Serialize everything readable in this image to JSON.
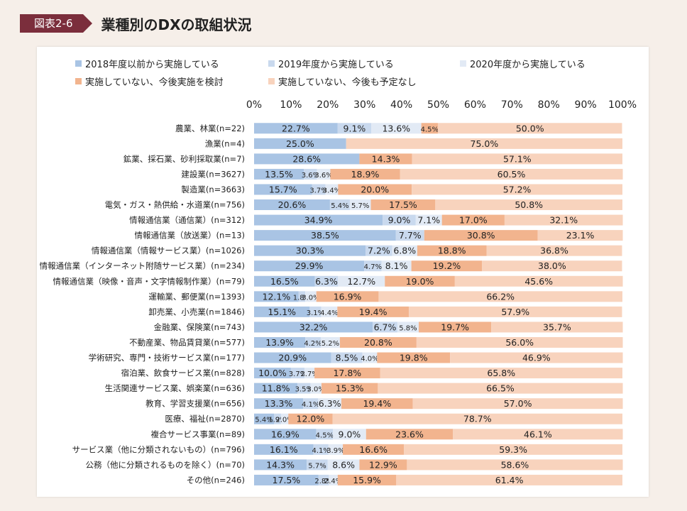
{
  "header": {
    "badge": "図表2-6",
    "title": "業種別のDXの取組状況"
  },
  "chart_data": {
    "type": "bar",
    "orientation": "horizontal",
    "stacked": true,
    "percent": true,
    "xlim": [
      0,
      100
    ],
    "xticks": [
      "0%",
      "10%",
      "20%",
      "30%",
      "40%",
      "50%",
      "60%",
      "70%",
      "80%",
      "90%",
      "100%"
    ],
    "legend_position": "top",
    "categories": [
      "農業、林業(n=22)",
      "漁業(n=4)",
      "鉱業、採石業、砂利採取業(n=7)",
      "建設業(n=3627)",
      "製造業(n=3663)",
      "電気・ガス・熱供給・水道業(n=756)",
      "情報通信業（通信業）(n=312)",
      "情報通信業（放送業）(n=13)",
      "情報通信業（情報サービス業）(n=1026)",
      "情報通信業（インターネット附随サービス業）(n=234)",
      "情報通信業（映像・音声・文字情報制作業）(n=79)",
      "運輸業、郵便業(n=1393)",
      "卸売業、小売業(n=1846)",
      "金融業、保険業(n=743)",
      "不動産業、物品賃貸業(n=577)",
      "学術研究、専門・技術サービス業(n=177)",
      "宿泊業、飲食サービス業(n=828)",
      "生活関連サービス業、娯楽業(n=636)",
      "教育、学習支援業(n=656)",
      "医療、福祉(n=2870)",
      "複合サービス事業(n=89)",
      "サービス業（他に分類されないもの）(n=796)",
      "公務（他に分類されるものを除く）(n=70)",
      "その他(n=246)"
    ],
    "series": [
      {
        "name": "2018年度以前から実施している",
        "color": "#a9c4e4",
        "values": [
          22.7,
          25.0,
          28.6,
          13.5,
          15.7,
          20.6,
          34.9,
          38.5,
          30.3,
          29.9,
          16.5,
          12.1,
          15.1,
          32.2,
          13.9,
          20.9,
          10.0,
          11.8,
          13.3,
          5.4,
          16.9,
          16.1,
          14.3,
          17.5
        ]
      },
      {
        "name": "2019年度から実施している",
        "color": "#c9d9ee",
        "values": [
          9.1,
          0,
          0,
          3.6,
          3.7,
          5.4,
          9.0,
          7.7,
          7.2,
          4.7,
          6.3,
          1.8,
          3.1,
          6.7,
          4.2,
          8.5,
          3.7,
          3.5,
          4.1,
          1.9,
          4.5,
          4.1,
          5.7,
          2.8
        ]
      },
      {
        "name": "2020年度から実施している",
        "color": "#e2eaf5",
        "values": [
          13.6,
          0,
          0,
          3.6,
          3.4,
          5.7,
          7.1,
          0,
          6.8,
          8.1,
          12.7,
          3.0,
          4.4,
          5.8,
          5.2,
          4.0,
          2.7,
          3.0,
          6.3,
          2.0,
          9.0,
          3.9,
          8.6,
          2.4
        ]
      },
      {
        "name": "実施していない、今後実施を検討",
        "color": "#f2b48e",
        "values": [
          4.5,
          0,
          14.3,
          18.9,
          20.0,
          17.5,
          17.0,
          30.8,
          18.8,
          19.2,
          19.0,
          16.9,
          19.4,
          19.7,
          20.8,
          19.8,
          17.8,
          15.3,
          19.4,
          12.0,
          23.6,
          16.6,
          12.9,
          15.9
        ]
      },
      {
        "name": "実施していない、今後も予定なし",
        "color": "#f8d3bd",
        "values": [
          50.0,
          75.0,
          57.1,
          60.5,
          57.2,
          50.8,
          32.1,
          23.1,
          36.8,
          38.0,
          45.6,
          66.2,
          57.9,
          35.7,
          56.0,
          46.9,
          65.8,
          66.5,
          57.0,
          78.7,
          46.1,
          59.3,
          58.6,
          61.4
        ]
      }
    ],
    "labels": [
      [
        "22.7%",
        "9.1%",
        "13.6%",
        "4.5%",
        "50.0%"
      ],
      [
        "25.0%",
        "",
        "",
        "",
        "75.0%"
      ],
      [
        "28.6%",
        "",
        "",
        "14.3%",
        "57.1%"
      ],
      [
        "13.5%",
        "3.6%",
        "3.6%",
        "18.9%",
        "60.5%"
      ],
      [
        "15.7%",
        "3.7%",
        "3.4%",
        "20.0%",
        "57.2%"
      ],
      [
        "20.6%",
        "5.4%",
        "5.7%",
        "17.5%",
        "50.8%"
      ],
      [
        "34.9%",
        "9.0%",
        "7.1%",
        "17.0%",
        "32.1%"
      ],
      [
        "38.5%",
        "7.7%",
        "",
        "30.8%",
        "23.1%"
      ],
      [
        "30.3%",
        "7.2%",
        "6.8%",
        "18.8%",
        "36.8%"
      ],
      [
        "29.9%",
        "4.7%",
        "8.1%",
        "19.2%",
        "38.0%"
      ],
      [
        "16.5%",
        "6.3%",
        "12.7%",
        "19.0%",
        "45.6%"
      ],
      [
        "12.1%",
        "1.8%",
        "3.0%",
        "16.9%",
        "66.2%"
      ],
      [
        "15.1%",
        "3.1%",
        "4.4%",
        "19.4%",
        "57.9%"
      ],
      [
        "32.2%",
        "6.7%",
        "5.8%",
        "19.7%",
        "35.7%"
      ],
      [
        "13.9%",
        "4.2%",
        "5.2%",
        "20.8%",
        "56.0%"
      ],
      [
        "20.9%",
        "8.5%",
        "4.0%",
        "19.8%",
        "46.9%"
      ],
      [
        "10.0%",
        "3.7%",
        "2.7%",
        "17.8%",
        "65.8%"
      ],
      [
        "11.8%",
        "3.5%",
        "3.0%",
        "15.3%",
        "66.5%"
      ],
      [
        "13.3%",
        "4.1%",
        "6.3%",
        "19.4%",
        "57.0%"
      ],
      [
        "5.4%",
        "1.9%",
        "2.0%",
        "12.0%",
        "78.7%"
      ],
      [
        "16.9%",
        "4.5%",
        "9.0%",
        "23.6%",
        "46.1%"
      ],
      [
        "16.1%",
        "4.1%",
        "3.9%",
        "16.6%",
        "59.3%"
      ],
      [
        "14.3%",
        "5.7%",
        "8.6%",
        "12.9%",
        "58.6%"
      ],
      [
        "17.5%",
        "2.8%",
        "2.4%",
        "15.9%",
        "61.4%"
      ]
    ]
  }
}
